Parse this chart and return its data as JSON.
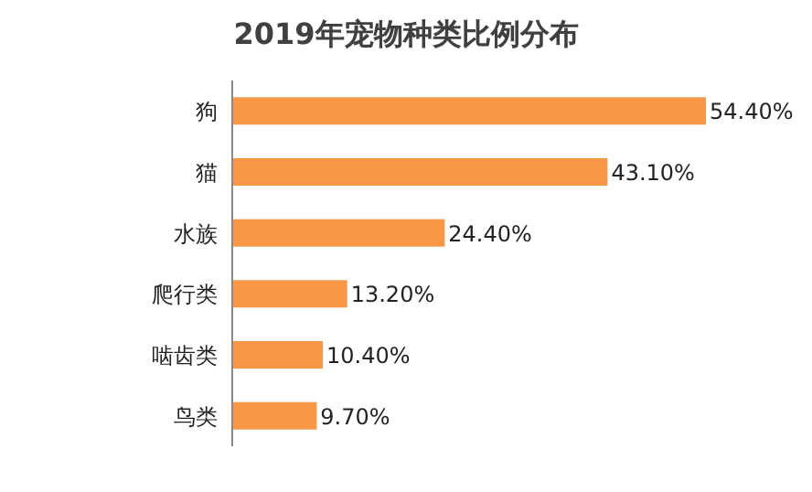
{
  "chart_data": {
    "type": "bar",
    "orientation": "horizontal",
    "title": "2019年宠物种类比例分布",
    "categories": [
      "狗",
      "猫",
      "水族",
      "爬行类",
      "啮齿类",
      "鸟类"
    ],
    "values": [
      54.4,
      43.1,
      24.4,
      13.2,
      10.4,
      9.7
    ],
    "value_labels": [
      "54.40%",
      "43.10%",
      "24.40%",
      "13.20%",
      "10.40%",
      "9.70%"
    ],
    "color": "#f79646"
  }
}
